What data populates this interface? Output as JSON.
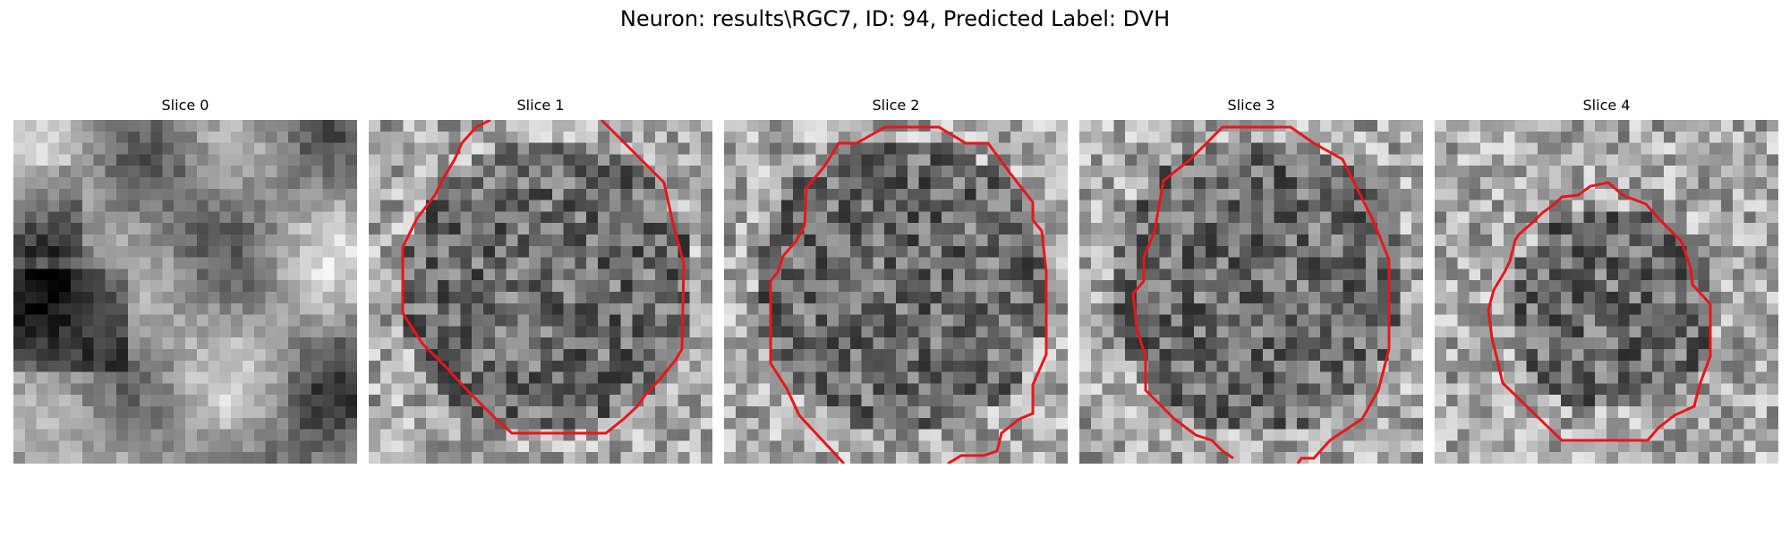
{
  "figure": {
    "title": "Neuron: results\\RGC7, ID: 94, Predicted Label: DVH"
  },
  "panels": [
    {
      "title": "Slice 0",
      "has_contour": false
    },
    {
      "title": "Slice 1",
      "has_contour": true
    },
    {
      "title": "Slice 2",
      "has_contour": true
    },
    {
      "title": "Slice 3",
      "has_contour": true
    },
    {
      "title": "Slice 4",
      "has_contour": true
    }
  ],
  "colors": {
    "contour": "#e8161b",
    "background": "#ffffff"
  },
  "colormap": "gray"
}
